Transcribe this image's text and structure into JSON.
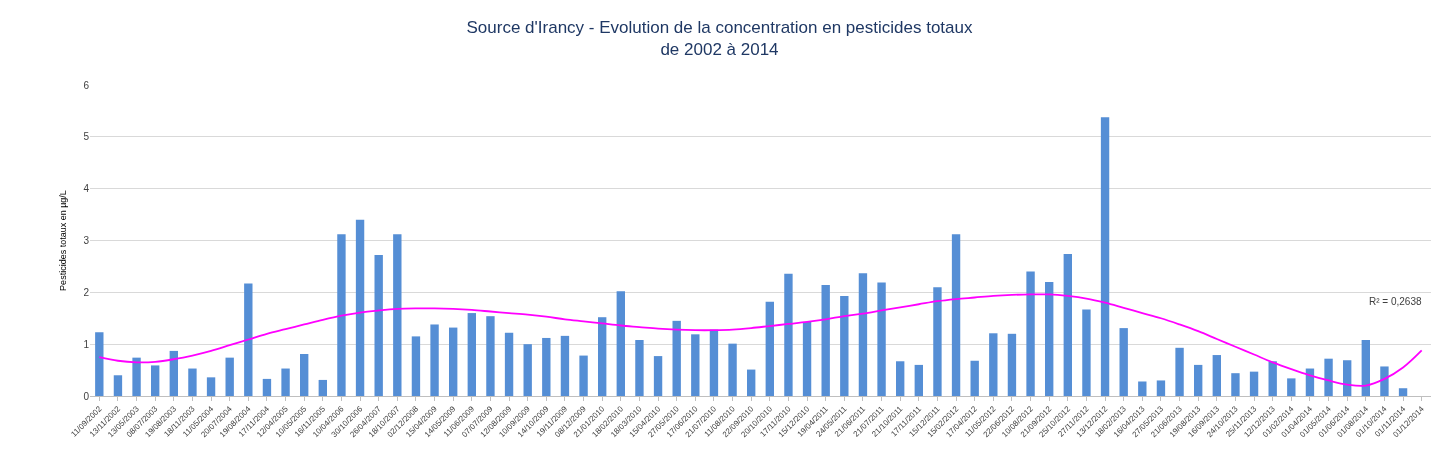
{
  "chart_data": {
    "type": "bar",
    "title": "Source d'Irancy - Evolution de la concentration en pesticides totaux\nde 2002 à 2014",
    "ylabel": "Pesticides totaux en µg/L",
    "categories": [
      "11/09/2002",
      "13/11/2002",
      "13/05/2003",
      "08/07/2003",
      "19/08/2003",
      "18/11/2003",
      "11/05/2004",
      "20/07/2004",
      "19/08/2004",
      "17/11/2004",
      "12/04/2005",
      "10/05/2005",
      "16/11/2005",
      "10/04/2006",
      "30/10/2006",
      "26/04/2007",
      "18/10/2007",
      "02/12/2008",
      "15/04/2009",
      "14/05/2009",
      "11/06/2009",
      "07/07/2009",
      "12/08/2009",
      "10/09/2009",
      "14/10/2009",
      "19/11/2009",
      "08/12/2009",
      "21/01/2010",
      "18/02/2010",
      "18/03/2010",
      "15/04/2010",
      "27/05/2010",
      "17/06/2010",
      "21/07/2010",
      "11/08/2010",
      "22/09/2010",
      "20/10/2010",
      "17/11/2010",
      "15/12/2010",
      "19/04/2011",
      "24/05/2011",
      "21/06/2011",
      "21/07/2011",
      "21/10/2011",
      "17/11/2011",
      "15/12/2011",
      "15/02/2012",
      "17/04/2012",
      "11/05/2012",
      "22/06/2012",
      "10/08/2012",
      "21/09/2012",
      "25/10/2012",
      "27/11/2012",
      "13/12/2012",
      "18/02/2013",
      "16/04/2013",
      "27/05/2013",
      "21/06/2013",
      "19/08/2013",
      "16/09/2013",
      "24/10/2013",
      "25/11/2013",
      "12/12/2013",
      "01/02/2014",
      "01/04/2014",
      "01/05/2014",
      "01/06/2014",
      "01/08/2014",
      "01/10/2014",
      "01/11/2014",
      "01/12/2014"
    ],
    "series": [
      {
        "color": "#558ed5",
        "values": [
          1.23,
          0.4,
          0.74,
          0.59,
          0.87,
          0.53,
          0.36,
          0.74,
          2.17,
          0.33,
          0.53,
          0.81,
          0.31,
          3.12,
          3.4,
          2.72,
          3.12,
          1.15,
          1.38,
          1.32,
          1.6,
          1.54,
          1.22,
          1.0,
          1.12,
          1.16,
          0.78,
          1.52,
          2.02,
          1.08,
          0.77,
          1.45,
          1.19,
          1.28,
          1.01,
          0.51,
          1.82,
          2.36,
          1.43,
          2.14,
          1.93,
          2.37,
          2.19,
          0.67,
          0.6,
          2.1,
          3.12,
          0.68,
          1.21,
          1.2,
          2.4,
          2.2,
          2.74,
          1.67,
          5.38,
          1.31,
          0.28,
          0.3,
          0.93,
          0.6,
          0.79,
          0.44,
          0.47,
          0.67,
          0.34,
          0.53,
          0.72,
          0.69,
          1.08,
          0.57,
          0.15,
          null
        ]
      },
      {
        "type": "line",
        "color": "#ff00ff",
        "values": [
          0.75,
          0.68,
          0.65,
          0.66,
          0.71,
          0.78,
          0.87,
          0.98,
          1.09,
          1.2,
          1.29,
          1.38,
          1.47,
          1.55,
          1.61,
          1.65,
          1.68,
          1.69,
          1.69,
          1.68,
          1.66,
          1.63,
          1.6,
          1.57,
          1.53,
          1.48,
          1.44,
          1.4,
          1.36,
          1.33,
          1.3,
          1.28,
          1.27,
          1.27,
          1.28,
          1.31,
          1.35,
          1.39,
          1.43,
          1.48,
          1.54,
          1.59,
          1.65,
          1.71,
          1.77,
          1.83,
          1.87,
          1.9,
          1.93,
          1.95,
          1.96,
          1.96,
          1.93,
          1.88,
          1.8,
          1.7,
          1.6,
          1.5,
          1.38,
          1.25,
          1.1,
          0.95,
          0.8,
          0.65,
          0.52,
          0.4,
          0.3,
          0.22,
          0.2,
          0.33,
          0.55,
          0.88
        ]
      }
    ],
    "annotations": [
      "R² = 0,2638"
    ],
    "ylim": [
      0,
      6
    ],
    "yticks": [
      0,
      1,
      2,
      3,
      4,
      5,
      6
    ],
    "grid": "y"
  }
}
